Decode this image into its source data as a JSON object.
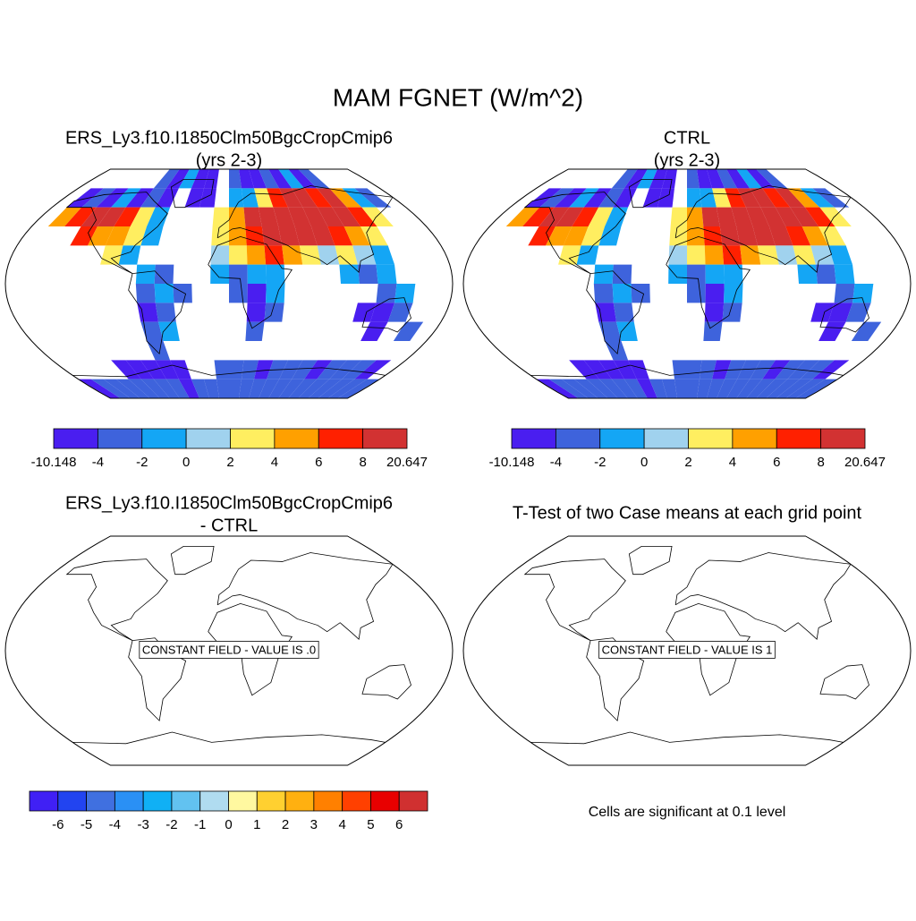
{
  "title": "MAM FGNET (W/m^2)",
  "panels": [
    {
      "title": [
        "ERS_Ly3.f10.I1850Clm50BgcCropCmip6",
        "(yrs 2-3)"
      ],
      "grid_lon": [
        -180,
        180
      ],
      "grid_lat": [
        90,
        -90
      ],
      "grid": [
        [
          null,
          null,
          null,
          null,
          null,
          null,
          -3,
          -5,
          -2,
          -5,
          -5,
          null,
          -3,
          -5,
          -5,
          -3,
          -5,
          -2,
          -5,
          -3,
          null,
          null,
          null,
          null
        ],
        [
          null,
          -5,
          -3,
          -5,
          -1,
          -5,
          -3,
          -5,
          null,
          -5,
          -5,
          null,
          -2,
          -1,
          3,
          7,
          9,
          9,
          7,
          9,
          5,
          -1,
          -3,
          null
        ],
        [
          null,
          5,
          7,
          9,
          9,
          7,
          3,
          -1,
          null,
          null,
          null,
          3,
          5,
          9,
          9,
          9,
          9,
          9,
          9,
          9,
          7,
          3,
          null,
          null
        ],
        [
          null,
          null,
          null,
          7,
          5,
          5,
          3,
          -1,
          null,
          null,
          null,
          3,
          5,
          7,
          9,
          9,
          9,
          9,
          7,
          5,
          3,
          null,
          null,
          null
        ],
        [
          null,
          null,
          null,
          null,
          null,
          3,
          -1,
          null,
          null,
          null,
          null,
          1,
          3,
          5,
          7,
          5,
          3,
          1,
          3,
          1,
          -1,
          null,
          null,
          null
        ],
        [
          null,
          null,
          null,
          null,
          null,
          null,
          null,
          -1,
          -3,
          null,
          null,
          -1,
          -3,
          -1,
          -1,
          null,
          null,
          null,
          -1,
          -3,
          -1,
          null,
          null,
          null
        ],
        [
          null,
          null,
          null,
          null,
          null,
          null,
          null,
          -3,
          -1,
          -3,
          null,
          null,
          -3,
          -5,
          -1,
          null,
          null,
          null,
          null,
          null,
          -3,
          -1,
          null,
          null
        ],
        [
          null,
          null,
          null,
          null,
          null,
          null,
          null,
          -5,
          -3,
          null,
          null,
          null,
          null,
          -5,
          -3,
          null,
          null,
          null,
          null,
          -5,
          -7,
          -3,
          null,
          null
        ],
        [
          null,
          null,
          null,
          null,
          null,
          null,
          null,
          -3,
          -1,
          null,
          null,
          null,
          null,
          -3,
          null,
          null,
          null,
          null,
          null,
          null,
          -5,
          null,
          -3,
          null
        ],
        [
          null,
          null,
          null,
          null,
          null,
          null,
          null,
          -3,
          null,
          null,
          null,
          null,
          null,
          null,
          null,
          null,
          null,
          null,
          null,
          null,
          null,
          null,
          null,
          null
        ],
        [
          null,
          null,
          null,
          null,
          -5,
          -5,
          -5,
          -7,
          -5,
          null,
          null,
          -3,
          -3,
          -3,
          -5,
          -3,
          -3,
          -3,
          -5,
          -3,
          -3,
          -3,
          -5,
          null
        ],
        [
          -5,
          -3,
          -3,
          -3,
          -3,
          -3,
          -3,
          -3,
          -5,
          -3,
          -3,
          -3,
          -3,
          -3,
          -3,
          -3,
          -3,
          -3,
          -3,
          -3,
          -3,
          -3,
          -3,
          -3
        ]
      ],
      "colorbar": {
        "levels": [
          -10.148,
          -4,
          -2,
          0,
          2,
          4,
          6,
          8,
          20.647
        ],
        "colors": [
          "#4a1ef0",
          "#3e63dc",
          "#14a6f5",
          "#a0d2ee",
          "#ffee60",
          "#ffa000",
          "#ff2000",
          "#d23232"
        ]
      }
    },
    {
      "title": [
        "CTRL",
        "(yrs 2-3)"
      ],
      "grid_lon": [
        -180,
        180
      ],
      "grid_lat": [
        90,
        -90
      ],
      "grid": [
        [
          null,
          null,
          null,
          null,
          null,
          null,
          -3,
          -5,
          -2,
          -5,
          -5,
          null,
          -3,
          -5,
          -5,
          -3,
          -5,
          -2,
          -5,
          -3,
          null,
          null,
          null,
          null
        ],
        [
          null,
          -5,
          -3,
          -5,
          -1,
          -5,
          -3,
          -5,
          null,
          -5,
          -5,
          null,
          -2,
          -1,
          3,
          7,
          9,
          9,
          7,
          9,
          5,
          -1,
          -3,
          null
        ],
        [
          null,
          5,
          7,
          9,
          9,
          7,
          3,
          -1,
          null,
          null,
          null,
          3,
          5,
          9,
          9,
          9,
          9,
          9,
          9,
          9,
          7,
          3,
          null,
          null
        ],
        [
          null,
          null,
          null,
          7,
          5,
          5,
          3,
          -1,
          null,
          null,
          null,
          3,
          5,
          7,
          9,
          9,
          9,
          9,
          7,
          5,
          3,
          null,
          null,
          null
        ],
        [
          null,
          null,
          null,
          null,
          null,
          3,
          -1,
          null,
          null,
          null,
          null,
          1,
          3,
          5,
          7,
          5,
          3,
          1,
          3,
          1,
          -1,
          null,
          null,
          null
        ],
        [
          null,
          null,
          null,
          null,
          null,
          null,
          null,
          -1,
          -3,
          null,
          null,
          -1,
          -3,
          -1,
          -1,
          null,
          null,
          null,
          -1,
          -3,
          -1,
          null,
          null,
          null
        ],
        [
          null,
          null,
          null,
          null,
          null,
          null,
          null,
          -3,
          -1,
          -3,
          null,
          null,
          -3,
          -5,
          -1,
          null,
          null,
          null,
          null,
          null,
          -3,
          -1,
          null,
          null
        ],
        [
          null,
          null,
          null,
          null,
          null,
          null,
          null,
          -5,
          -3,
          null,
          null,
          null,
          null,
          -5,
          -3,
          null,
          null,
          null,
          null,
          -5,
          -7,
          -3,
          null,
          null
        ],
        [
          null,
          null,
          null,
          null,
          null,
          null,
          null,
          -3,
          -1,
          null,
          null,
          null,
          null,
          -3,
          null,
          null,
          null,
          null,
          null,
          null,
          -5,
          null,
          -3,
          null
        ],
        [
          null,
          null,
          null,
          null,
          null,
          null,
          null,
          -3,
          null,
          null,
          null,
          null,
          null,
          null,
          null,
          null,
          null,
          null,
          null,
          null,
          null,
          null,
          null,
          null
        ],
        [
          null,
          null,
          null,
          null,
          -5,
          -5,
          -5,
          -7,
          -5,
          null,
          null,
          -3,
          -3,
          -3,
          -5,
          -3,
          -3,
          -3,
          -5,
          -3,
          -3,
          -3,
          -5,
          null
        ],
        [
          -5,
          -3,
          -3,
          -3,
          -3,
          -3,
          -3,
          -3,
          -5,
          -3,
          -3,
          -3,
          -3,
          -3,
          -3,
          -3,
          -3,
          -3,
          -3,
          -3,
          -3,
          -3,
          -3,
          -3
        ]
      ],
      "colorbar": {
        "levels": [
          -10.148,
          -4,
          -2,
          0,
          2,
          4,
          6,
          8,
          20.647
        ],
        "colors": [
          "#4a1ef0",
          "#3e63dc",
          "#14a6f5",
          "#a0d2ee",
          "#ffee60",
          "#ffa000",
          "#ff2000",
          "#d23232"
        ]
      }
    },
    {
      "title": [
        "ERS_Ly3.f10.I1850Clm50BgcCropCmip6",
        "- CTRL"
      ],
      "annotation": "CONSTANT FIELD - VALUE IS .0",
      "colorbar": {
        "levels": [
          -6,
          -5,
          -4,
          -3,
          -2,
          -1,
          0,
          1,
          2,
          3,
          4,
          5,
          6
        ],
        "colors": [
          "#4020f5",
          "#2244f0",
          "#4070e0",
          "#2a90f5",
          "#10b0f5",
          "#62c2f0",
          "#b0dcf0",
          "#fff8a0",
          "#ffd030",
          "#ffb010",
          "#ff8000",
          "#ff4000",
          "#e80000",
          "#d03030"
        ]
      }
    },
    {
      "title": [
        "T-Test of two Case means at each grid point"
      ],
      "annotation": "CONSTANT FIELD - VALUE IS 1",
      "footnote": "Cells are significant at 0.1 level"
    }
  ]
}
